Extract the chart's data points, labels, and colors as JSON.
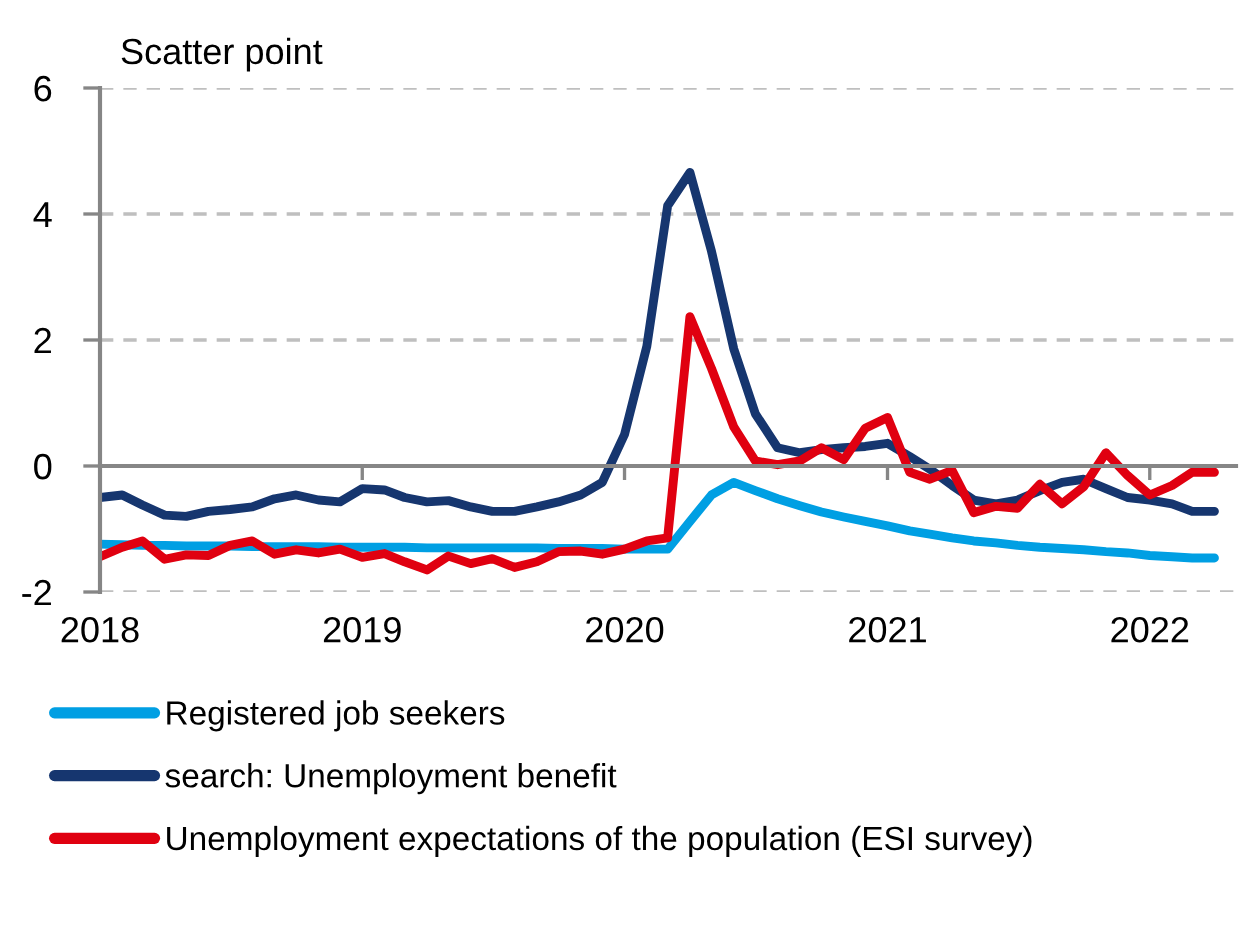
{
  "chart_data": {
    "type": "line",
    "ylabel": "Scatter point",
    "x": [
      "2018-01",
      "2018-02",
      "2018-03",
      "2018-04",
      "2018-05",
      "2018-06",
      "2018-07",
      "2018-08",
      "2018-09",
      "2018-10",
      "2018-11",
      "2018-12",
      "2019-01",
      "2019-02",
      "2019-03",
      "2019-04",
      "2019-05",
      "2019-06",
      "2019-07",
      "2019-08",
      "2019-09",
      "2019-10",
      "2019-11",
      "2019-12",
      "2020-01",
      "2020-02",
      "2020-03",
      "2020-04",
      "2020-05",
      "2020-06",
      "2020-07",
      "2020-08",
      "2020-09",
      "2020-10",
      "2020-11",
      "2020-12",
      "2021-01",
      "2021-02",
      "2021-03",
      "2021-04",
      "2021-05",
      "2021-06",
      "2021-07",
      "2021-08",
      "2021-09",
      "2021-10",
      "2021-11",
      "2021-12",
      "2022-01",
      "2022-02",
      "2022-03",
      "2022-04"
    ],
    "xlim": [
      "2018-01",
      "2022-05"
    ],
    "xticks": [
      "2018",
      "2019",
      "2020",
      "2021",
      "2022"
    ],
    "ylim": [
      -2,
      6
    ],
    "yticks": [
      -2,
      0,
      2,
      4,
      6
    ],
    "grid": "y",
    "legend": "bottom",
    "series": [
      {
        "name": "Registered job seekers",
        "color": "#009fe3",
        "values": [
          -1.24,
          -1.25,
          -1.26,
          -1.26,
          -1.27,
          -1.27,
          -1.27,
          -1.28,
          -1.28,
          -1.28,
          -1.28,
          -1.29,
          -1.29,
          -1.29,
          -1.29,
          -1.3,
          -1.3,
          -1.3,
          -1.3,
          -1.3,
          -1.3,
          -1.31,
          -1.31,
          -1.31,
          -1.32,
          -1.32,
          -1.32,
          -0.88,
          -0.46,
          -0.26,
          -0.39,
          -0.52,
          -0.63,
          -0.73,
          -0.81,
          -0.88,
          -0.95,
          -1.03,
          -1.08,
          -1.14,
          -1.19,
          -1.22,
          -1.26,
          -1.29,
          -1.31,
          -1.33,
          -1.36,
          -1.38,
          -1.42,
          -1.44,
          -1.46,
          -1.46
        ]
      },
      {
        "name": "search: Unemployment benefit",
        "color": "#16366f",
        "values": [
          -0.5,
          -0.46,
          -0.62,
          -0.78,
          -0.8,
          -0.72,
          -0.69,
          -0.65,
          -0.52,
          -0.46,
          -0.54,
          -0.57,
          -0.36,
          -0.38,
          -0.5,
          -0.57,
          -0.55,
          -0.65,
          -0.72,
          -0.72,
          -0.65,
          -0.57,
          -0.46,
          -0.26,
          0.5,
          1.9,
          4.13,
          4.66,
          3.41,
          1.86,
          0.83,
          0.29,
          0.21,
          0.26,
          0.29,
          0.31,
          0.36,
          0.15,
          -0.05,
          -0.31,
          -0.54,
          -0.6,
          -0.54,
          -0.39,
          -0.26,
          -0.21,
          -0.36,
          -0.5,
          -0.54,
          -0.6,
          -0.72,
          -0.72
        ]
      },
      {
        "name": "Unemployment expectations of the population (ESI survey)",
        "color": "#e00010",
        "values": [
          -1.44,
          -1.29,
          -1.19,
          -1.48,
          -1.41,
          -1.42,
          -1.26,
          -1.19,
          -1.4,
          -1.33,
          -1.38,
          -1.32,
          -1.45,
          -1.39,
          -1.52,
          -1.65,
          -1.43,
          -1.55,
          -1.47,
          -1.61,
          -1.52,
          -1.36,
          -1.35,
          -1.4,
          -1.32,
          -1.19,
          -1.14,
          2.37,
          1.55,
          0.62,
          0.08,
          0.02,
          0.08,
          0.29,
          0.1,
          0.6,
          0.77,
          -0.1,
          -0.21,
          -0.07,
          -0.74,
          -0.64,
          -0.67,
          -0.29,
          -0.6,
          -0.33,
          0.21,
          -0.15,
          -0.46,
          -0.31,
          -0.1,
          -0.1
        ]
      }
    ]
  }
}
